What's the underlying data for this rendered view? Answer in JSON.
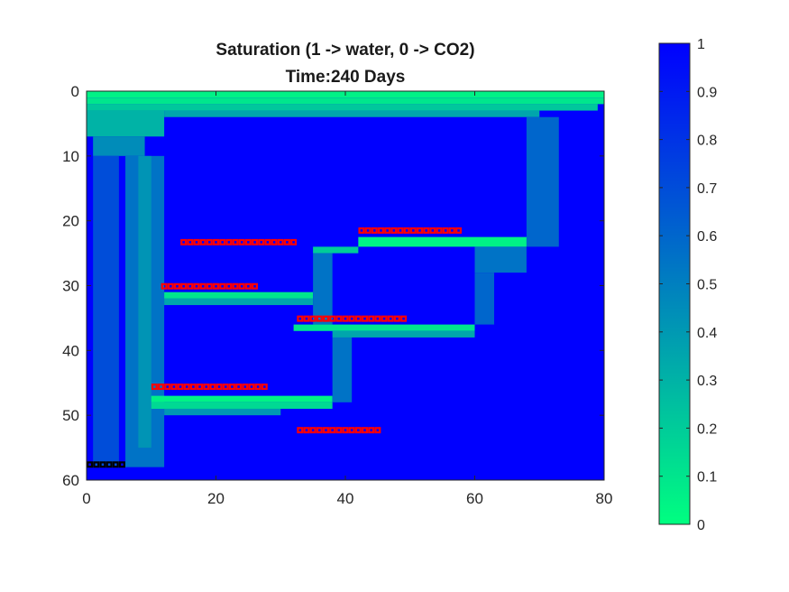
{
  "chart_data": {
    "type": "heatmap",
    "title": [
      "Saturation (1 -> water, 0 -> CO2)",
      "Time:240 Days"
    ],
    "xlim": [
      0,
      80
    ],
    "ylim": [
      0,
      60
    ],
    "y_direction": "reversed",
    "x_ticks": [
      "0",
      "20",
      "40",
      "60",
      "80"
    ],
    "y_ticks": [
      "0",
      "10",
      "20",
      "30",
      "40",
      "50",
      "60"
    ],
    "colormap": {
      "low": "#00ff80",
      "high": "#0000ff",
      "range": [
        0,
        1
      ]
    },
    "colorbar_ticks": [
      "0",
      "0.1",
      "0.2",
      "0.3",
      "0.4",
      "0.5",
      "0.6",
      "0.7",
      "0.8",
      "0.9",
      "1"
    ],
    "background_value": 1.0,
    "regions": [
      {
        "x": [
          0,
          80
        ],
        "y": [
          0,
          1
        ],
        "value": 0.05
      },
      {
        "x": [
          0,
          80
        ],
        "y": [
          1,
          2
        ],
        "value": 0.1
      },
      {
        "x": [
          0,
          79
        ],
        "y": [
          2,
          3
        ],
        "value": 0.22
      },
      {
        "x": [
          0,
          12
        ],
        "y": [
          3,
          7
        ],
        "value": 0.3
      },
      {
        "x": [
          12,
          70
        ],
        "y": [
          3,
          4
        ],
        "value": 0.35
      },
      {
        "x": [
          1,
          9
        ],
        "y": [
          7,
          10
        ],
        "value": 0.45
      },
      {
        "x": [
          6,
          12
        ],
        "y": [
          10,
          58
        ],
        "value": 0.55
      },
      {
        "x": [
          8,
          10
        ],
        "y": [
          10,
          55
        ],
        "value": 0.42
      },
      {
        "x": [
          68,
          73
        ],
        "y": [
          4,
          24
        ],
        "value": 0.6
      },
      {
        "x": [
          42,
          68
        ],
        "y": [
          22.5,
          24
        ],
        "value": 0.05
      },
      {
        "x": [
          35,
          42
        ],
        "y": [
          24,
          25
        ],
        "value": 0.2
      },
      {
        "x": [
          60,
          68
        ],
        "y": [
          24,
          28
        ],
        "value": 0.55
      },
      {
        "x": [
          12,
          35
        ],
        "y": [
          31,
          32
        ],
        "value": 0.1
      },
      {
        "x": [
          12,
          35
        ],
        "y": [
          32,
          33
        ],
        "value": 0.35
      },
      {
        "x": [
          35,
          38
        ],
        "y": [
          25,
          36
        ],
        "value": 0.55
      },
      {
        "x": [
          32,
          60
        ],
        "y": [
          36,
          37
        ],
        "value": 0.1
      },
      {
        "x": [
          38,
          60
        ],
        "y": [
          37,
          38
        ],
        "value": 0.35
      },
      {
        "x": [
          60,
          63
        ],
        "y": [
          28,
          36
        ],
        "value": 0.6
      },
      {
        "x": [
          10,
          38
        ],
        "y": [
          47,
          48
        ],
        "value": 0.05
      },
      {
        "x": [
          10,
          38
        ],
        "y": [
          48,
          49
        ],
        "value": 0.15
      },
      {
        "x": [
          12,
          30
        ],
        "y": [
          49,
          50
        ],
        "value": 0.4
      },
      {
        "x": [
          38,
          41
        ],
        "y": [
          38,
          48
        ],
        "value": 0.55
      },
      {
        "x": [
          1,
          5
        ],
        "y": [
          10,
          58
        ],
        "value": 0.7
      }
    ],
    "well_markers": [
      {
        "x_start": 14.5,
        "count": 18,
        "y": 23.3,
        "color": "#ff0000"
      },
      {
        "x_start": 42,
        "count": 16,
        "y": 21.5,
        "color": "#ff0000"
      },
      {
        "x_start": 11.5,
        "count": 15,
        "y": 30.1,
        "color": "#ff0000"
      },
      {
        "x_start": 32.5,
        "count": 17,
        "y": 35.1,
        "color": "#ff0000"
      },
      {
        "x_start": 10,
        "count": 18,
        "y": 45.6,
        "color": "#ff0000"
      },
      {
        "x_start": 32.5,
        "count": 13,
        "y": 52.3,
        "color": "#ff0000"
      },
      {
        "x_start": 0,
        "count": 6,
        "y": 57.6,
        "color": "#000000"
      }
    ]
  }
}
